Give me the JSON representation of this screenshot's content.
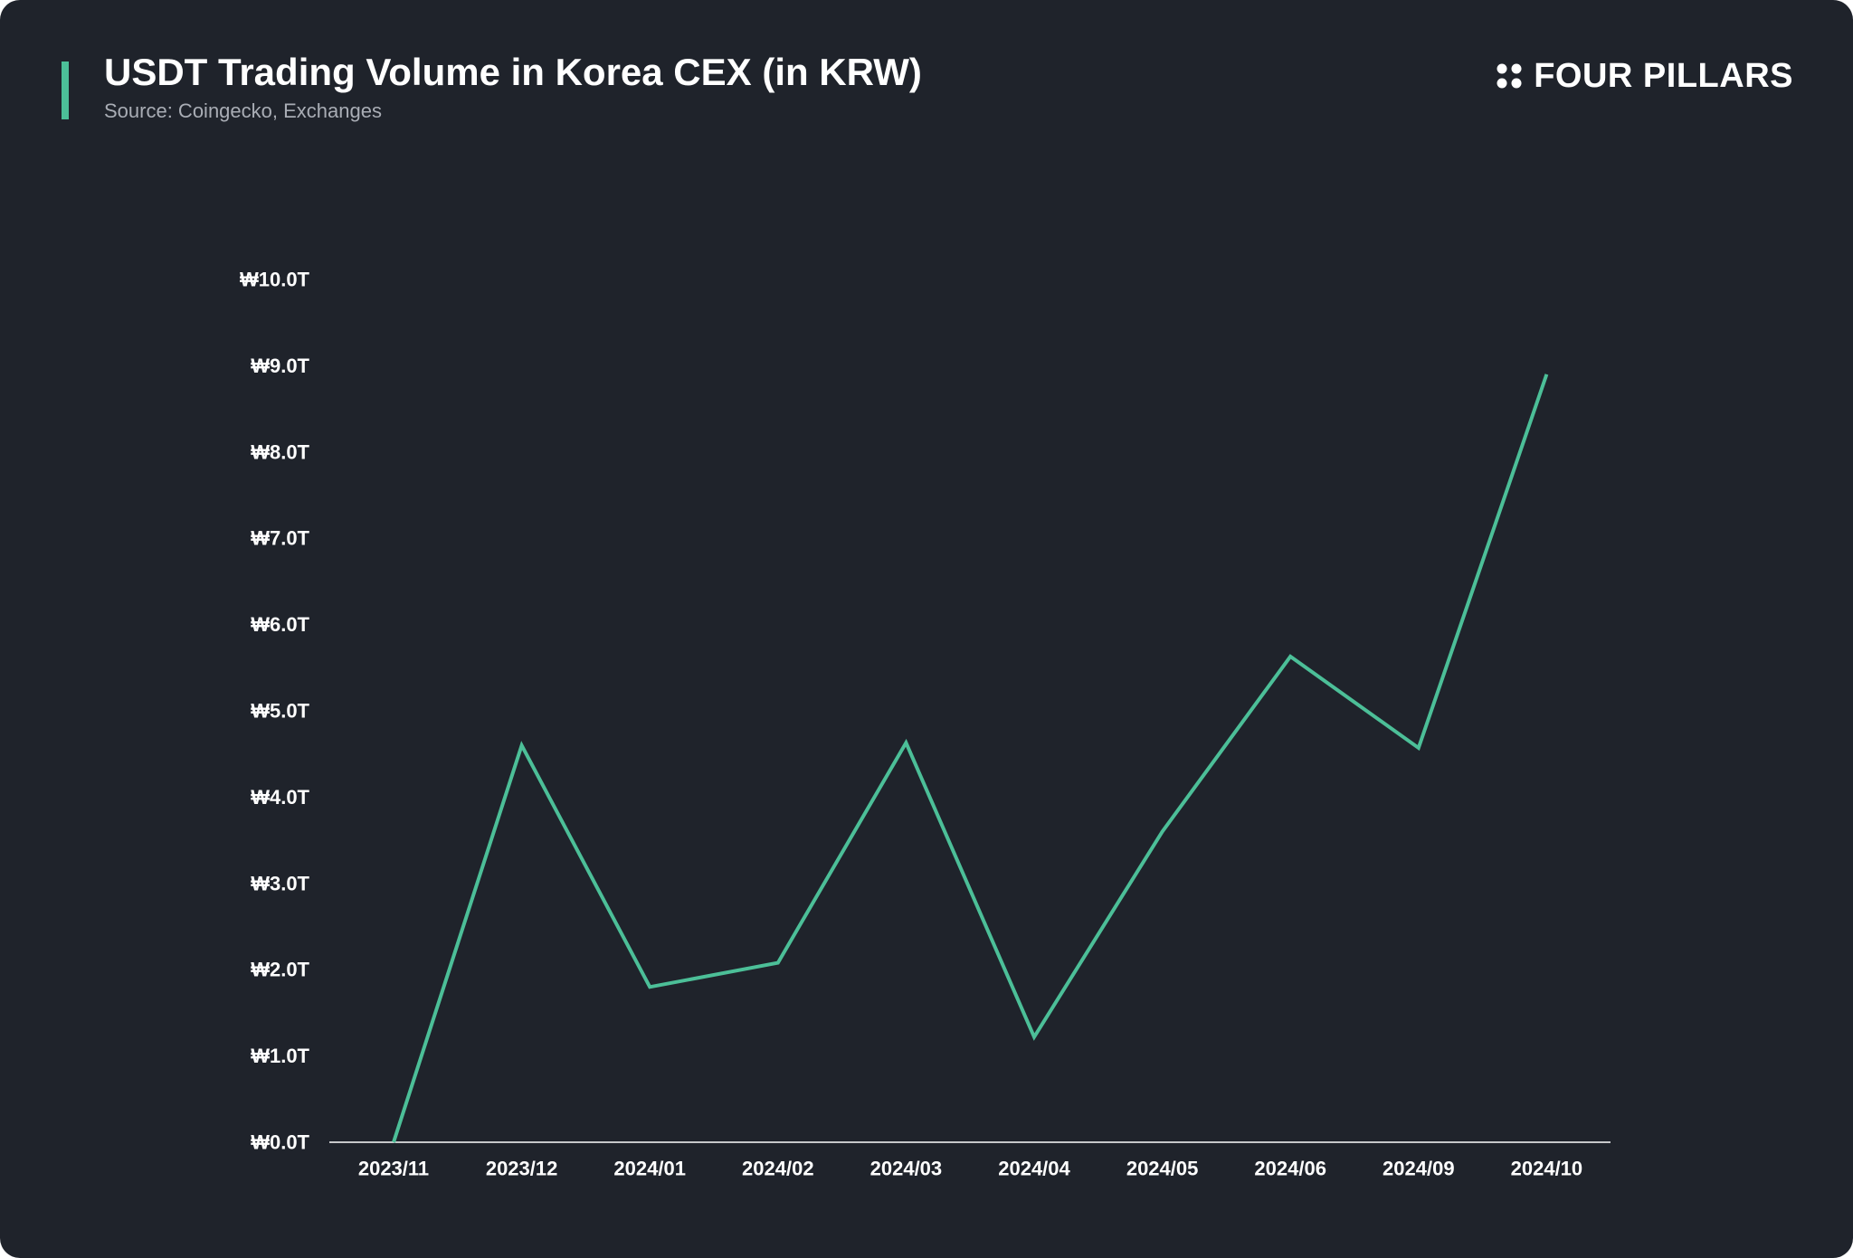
{
  "header": {
    "title": "USDT Trading Volume in Korea CEX (in KRW)",
    "subtitle": "Source: Coingecko, Exchanges",
    "brand": "FOUR PILLARS"
  },
  "colors": {
    "background": "#1f232b",
    "accent": "#4cbf98",
    "line": "#4cbf98",
    "text": "#ffffff",
    "subtext": "#a9adb5"
  },
  "icons": {
    "brand_logo": "four-dots-icon"
  },
  "chart_data": {
    "type": "line",
    "title": "USDT Trading Volume in Korea CEX (in KRW)",
    "xlabel": "",
    "ylabel": "",
    "categories": [
      "2023/11",
      "2023/12",
      "2024/01",
      "2024/02",
      "2024/03",
      "2024/04",
      "2024/05",
      "2024/06",
      "2024/09",
      "2024/10"
    ],
    "series": [
      {
        "values": [
          0.0,
          4.6,
          1.8,
          2.08,
          4.63,
          1.22,
          3.6,
          5.63,
          4.57,
          8.9
        ]
      }
    ],
    "ylim": [
      0,
      10
    ],
    "yticks": [
      0,
      1,
      2,
      3,
      4,
      5,
      6,
      7,
      8,
      9,
      10
    ],
    "ytick_labels": [
      "₩0.0T",
      "₩1.0T",
      "₩2.0T",
      "₩3.0T",
      "₩4.0T",
      "₩5.0T",
      "₩6.0T",
      "₩7.0T",
      "₩8.0T",
      "₩9.0T",
      "₩10.0T"
    ],
    "grid": false,
    "legend": "none"
  }
}
